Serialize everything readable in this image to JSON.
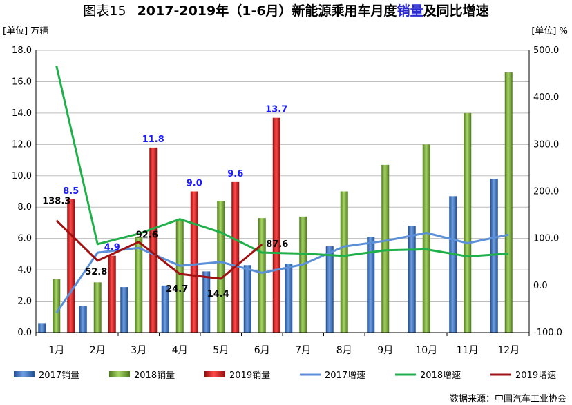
{
  "chart_data": {
    "type": "bar+line",
    "title": {
      "prefix": "图表15",
      "part1": "2017-2019年（1-6月）新能源乘用车月度",
      "highlight": "销量",
      "part2": "及同比增速"
    },
    "ylabel_left": "[单位] 万辆",
    "ylabel_right": "[单位] %",
    "ylim_left": [
      0,
      18
    ],
    "ylim_right": [
      -100,
      500
    ],
    "yticks_left": [
      "0.0",
      "2.0",
      "4.0",
      "6.0",
      "8.0",
      "10.0",
      "12.0",
      "14.0",
      "16.0",
      "18.0"
    ],
    "yticks_right": [
      "-100.0",
      "0.0",
      "100.0",
      "200.0",
      "300.0",
      "400.0",
      "500.0"
    ],
    "categories": [
      "1月",
      "2月",
      "3月",
      "4月",
      "5月",
      "6月",
      "7月",
      "8月",
      "9月",
      "10月",
      "11月",
      "12月"
    ],
    "bar_series": [
      {
        "name": "2017销量",
        "color": "#3a6fbf",
        "values": [
          0.6,
          1.7,
          2.9,
          3.0,
          3.9,
          4.3,
          4.4,
          5.5,
          6.1,
          6.8,
          8.7,
          9.8
        ]
      },
      {
        "name": "2018销量",
        "color": "#77a33a",
        "values": [
          3.4,
          3.2,
          6.1,
          7.2,
          8.4,
          7.3,
          7.4,
          9.0,
          10.7,
          12.0,
          14.0,
          16.6
        ]
      },
      {
        "name": "2019销量",
        "color": "#cc1c1c",
        "values": [
          8.5,
          4.9,
          11.8,
          9.0,
          9.6,
          13.7,
          null,
          null,
          null,
          null,
          null,
          null
        ]
      }
    ],
    "line_series": [
      {
        "name": "2017增速",
        "color": "#5b8fd8",
        "values": [
          -58,
          70,
          80,
          42,
          50,
          27,
          45,
          83,
          95,
          112,
          90,
          108
        ]
      },
      {
        "name": "2018增速",
        "color": "#1fb04a",
        "values": [
          467,
          88,
          110,
          141,
          113,
          70,
          68,
          63,
          75,
          77,
          62,
          68
        ]
      },
      {
        "name": "2019增速",
        "color": "#a01212",
        "values": [
          138.3,
          52.8,
          92.6,
          24.7,
          14.4,
          87.6,
          null,
          null,
          null,
          null,
          null,
          null
        ]
      }
    ],
    "data_labels_2019_sales": [
      "8.5",
      "4.9",
      "11.8",
      "9.0",
      "9.6",
      "13.7"
    ],
    "data_labels_2019_growth": [
      "138.3",
      "52.8",
      "92.6",
      "24.7",
      "14.4",
      "87.6"
    ],
    "legend_position": "bottom",
    "grid": true,
    "source": "数据来源：中国汽车工业协会"
  }
}
